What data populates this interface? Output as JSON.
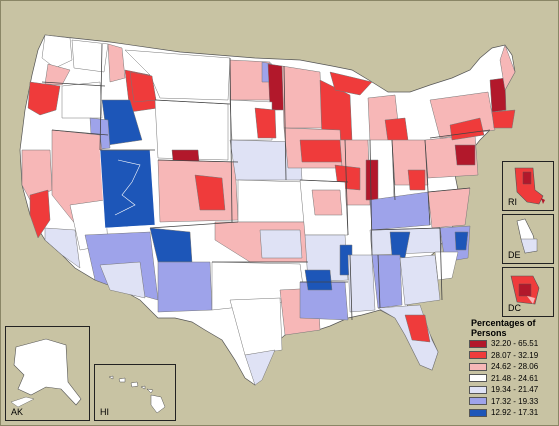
{
  "legend": {
    "title": "Percentages of Persons",
    "items": [
      {
        "label": "32.20 - 65.51",
        "color": "#b2182b"
      },
      {
        "label": "28.07 - 32.19",
        "color": "#ef3b3b"
      },
      {
        "label": "24.62 - 28.06",
        "color": "#f7b7b7"
      },
      {
        "label": "21.48 - 24.61",
        "color": "#ffffff"
      },
      {
        "label": "19.34 - 21.47",
        "color": "#dfe2f5"
      },
      {
        "label": "17.32 - 19.33",
        "color": "#9ea3ea"
      },
      {
        "label": "12.92 - 17.31",
        "color": "#1d56b8"
      }
    ]
  },
  "insets": {
    "ak": "AK",
    "hi": "HI",
    "ri": "RI",
    "de": "DE",
    "dc": "DC"
  }
}
